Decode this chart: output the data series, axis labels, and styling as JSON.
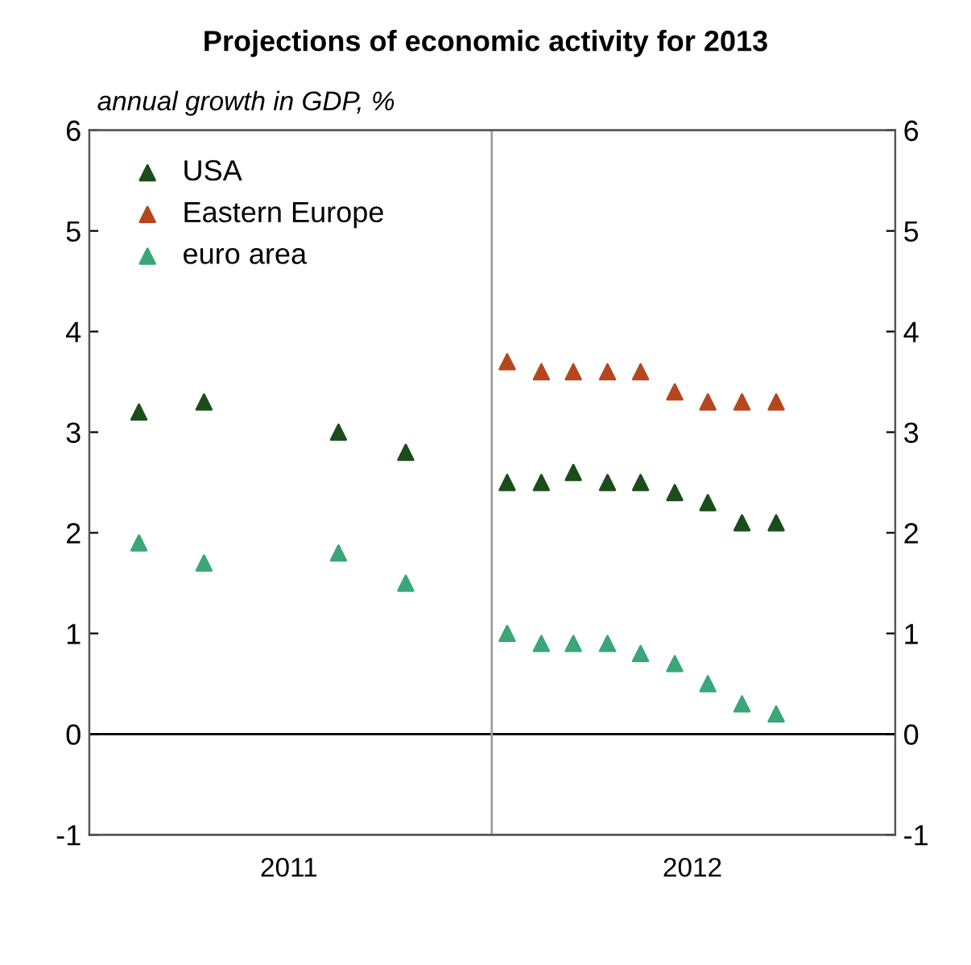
{
  "chart_data": {
    "type": "scatter",
    "title": "Projections of economic activity for 2013",
    "subtitle": "annual growth in GDP, %",
    "xlim": [
      "2011-01-01",
      "2013-01-01"
    ],
    "xticks": [
      {
        "value": "2011-07-01",
        "label": "2011"
      },
      {
        "value": "2012-07-01",
        "label": "2012"
      }
    ],
    "ylim": [
      -1,
      6
    ],
    "yticks": [
      -1,
      0,
      1,
      2,
      3,
      4,
      5,
      6
    ],
    "y2lim": [
      -1,
      6
    ],
    "y2ticks": [
      -1,
      0,
      1,
      2,
      3,
      4,
      5,
      6
    ],
    "grid": false,
    "legend": "top left",
    "marker": "triangle",
    "ref_lines": [
      {
        "axis": "y",
        "value": 0,
        "color": "#000000"
      },
      {
        "axis": "x",
        "value": "2012-01-01",
        "color": "#a0a0a0"
      }
    ],
    "series": [
      {
        "name": "USA",
        "color": "#1b4d1b",
        "x": [
          "2011-02-15",
          "2011-04-15",
          "2011-08-15",
          "2011-10-15",
          "2012-01-15",
          "2012-02-15",
          "2012-03-15",
          "2012-04-15",
          "2012-05-15",
          "2012-06-15",
          "2012-07-15",
          "2012-08-15",
          "2012-09-15"
        ],
        "values": [
          3.2,
          3.3,
          3.0,
          2.8,
          2.5,
          2.5,
          2.6,
          2.5,
          2.5,
          2.4,
          2.3,
          2.1,
          2.1
        ]
      },
      {
        "name": "Eastern Europe",
        "color": "#b5471f",
        "x": [
          "2012-01-15",
          "2012-02-15",
          "2012-03-15",
          "2012-04-15",
          "2012-05-15",
          "2012-06-15",
          "2012-07-15",
          "2012-08-15",
          "2012-09-15"
        ],
        "values": [
          3.7,
          3.6,
          3.6,
          3.6,
          3.6,
          3.4,
          3.3,
          3.3,
          3.3
        ]
      },
      {
        "name": "euro area",
        "color": "#3aa67a",
        "x": [
          "2011-02-15",
          "2011-04-15",
          "2011-08-15",
          "2011-10-15",
          "2012-01-15",
          "2012-02-15",
          "2012-03-15",
          "2012-04-15",
          "2012-05-15",
          "2012-06-15",
          "2012-07-15",
          "2012-08-15",
          "2012-09-15"
        ],
        "values": [
          1.9,
          1.7,
          1.8,
          1.5,
          1.0,
          0.9,
          0.9,
          0.9,
          0.8,
          0.7,
          0.5,
          0.3,
          0.2
        ]
      }
    ]
  }
}
